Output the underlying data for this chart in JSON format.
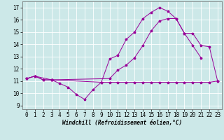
{
  "bg_color": "#cce8e8",
  "grid_color": "#aadddd",
  "line_color": "#990099",
  "xlabel": "Windchill (Refroidissement éolien,°C)",
  "xlim": [
    -0.5,
    23.5
  ],
  "ylim": [
    8.7,
    17.5
  ],
  "xticks": [
    0,
    1,
    2,
    3,
    4,
    5,
    6,
    7,
    8,
    9,
    10,
    11,
    12,
    13,
    14,
    15,
    16,
    17,
    18,
    19,
    20,
    21,
    22,
    23
  ],
  "yticks": [
    9,
    10,
    11,
    12,
    13,
    14,
    15,
    16,
    17
  ],
  "line1_x": [
    0,
    1,
    2,
    3,
    4,
    5,
    6,
    7,
    8,
    9,
    10,
    11,
    12,
    13,
    14,
    15,
    16,
    17,
    18,
    19,
    20,
    21,
    22,
    23
  ],
  "line1_y": [
    11.2,
    11.4,
    11.1,
    11.1,
    10.8,
    10.5,
    9.9,
    9.5,
    10.3,
    10.9,
    10.9,
    10.9,
    10.9,
    10.9,
    10.9,
    10.9,
    10.9,
    10.9,
    10.9,
    10.9,
    10.9,
    10.9,
    10.9,
    11.0
  ],
  "line2_x": [
    0,
    1,
    2,
    3,
    9,
    10,
    11,
    12,
    13,
    14,
    15,
    16,
    17,
    18,
    19,
    20,
    21
  ],
  "line2_y": [
    11.2,
    11.4,
    11.1,
    11.1,
    10.9,
    12.8,
    13.1,
    14.4,
    15.0,
    16.1,
    16.6,
    17.0,
    16.7,
    16.1,
    14.9,
    13.9,
    12.9
  ],
  "line3_x": [
    0,
    1,
    3,
    10,
    11,
    12,
    13,
    14,
    15,
    16,
    17,
    18,
    19,
    20,
    21,
    22,
    23
  ],
  "line3_y": [
    11.2,
    11.4,
    11.1,
    11.2,
    11.9,
    12.3,
    12.9,
    13.9,
    15.1,
    15.9,
    16.1,
    16.1,
    14.9,
    14.9,
    13.9,
    13.8,
    11.0
  ],
  "tick_fontsize": 5.5,
  "xlabel_fontsize": 5.5
}
